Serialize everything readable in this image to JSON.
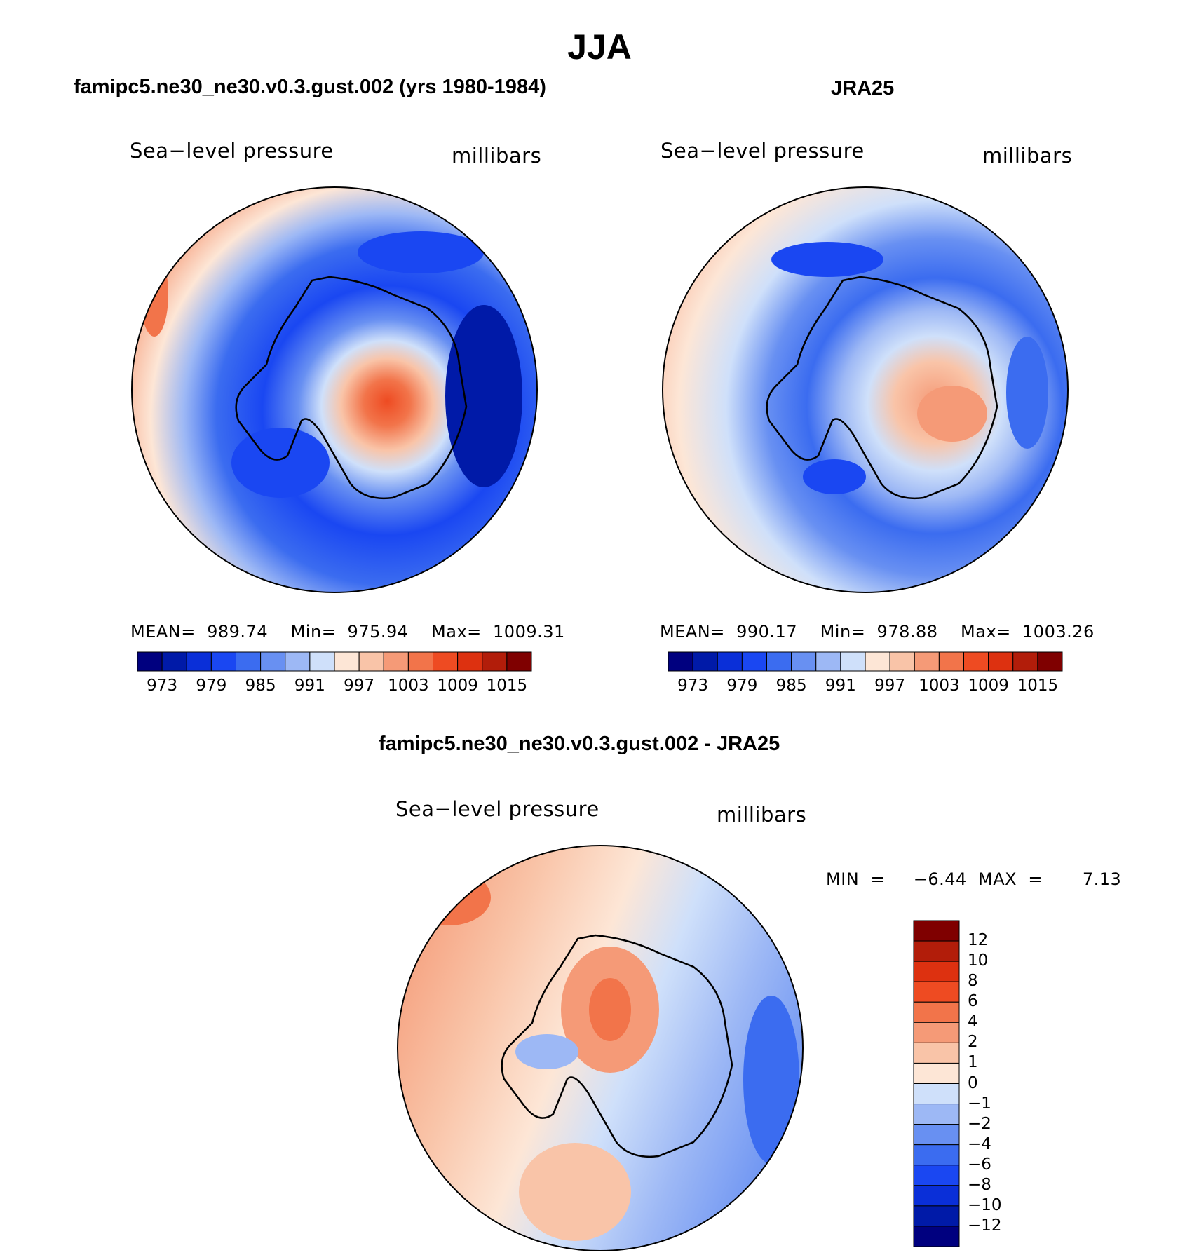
{
  "figure": {
    "title": "JJA",
    "panel1": {
      "title": "famipc5.ne30_ne30.v0.3.gust.002 (yrs 1980-1984)",
      "label_left": "Sea−level pressure",
      "label_right": "millibars",
      "stats": "MEAN=  989.74    Min=  975.94    Max=  1009.31"
    },
    "panel2": {
      "title": "JRA25",
      "label_left": "Sea−level pressure",
      "label_right": "millibars",
      "stats": "MEAN=  990.17    Min=  978.88    Max=  1003.26"
    },
    "panel3": {
      "title": "famipc5.ne30_ne30.v0.3.gust.002 - JRA25",
      "label_left": "Sea−level pressure",
      "label_right": "millibars",
      "stats": "MIN  =     −6.44  MAX  =       7.13"
    }
  },
  "chart_data": [
    {
      "type": "heatmap",
      "title": "famipc5.ne30_ne30.v0.3.gust.002 (yrs 1980-1984)",
      "variable": "Sea-level pressure",
      "units": "millibars",
      "season": "JJA",
      "projection": "south polar stereographic",
      "mean": 989.74,
      "min": 975.94,
      "max": 1009.31,
      "colorbar_ticks": [
        "973",
        "979",
        "985",
        "991",
        "997",
        "1003",
        "1009",
        "1015"
      ],
      "levels": [
        973,
        976,
        979,
        982,
        985,
        988,
        991,
        994,
        997,
        1000,
        1003,
        1006,
        1009,
        1012,
        1015
      ]
    },
    {
      "type": "heatmap",
      "title": "JRA25",
      "variable": "Sea-level pressure",
      "units": "millibars",
      "season": "JJA",
      "projection": "south polar stereographic",
      "mean": 990.17,
      "min": 978.88,
      "max": 1003.26,
      "colorbar_ticks": [
        "973",
        "979",
        "985",
        "991",
        "997",
        "1003",
        "1009",
        "1015"
      ],
      "levels": [
        973,
        976,
        979,
        982,
        985,
        988,
        991,
        994,
        997,
        1000,
        1003,
        1006,
        1009,
        1012,
        1015
      ]
    },
    {
      "type": "heatmap",
      "title": "famipc5.ne30_ne30.v0.3.gust.002 - JRA25",
      "variable": "Sea-level pressure difference",
      "units": "millibars",
      "projection": "south polar stereographic",
      "min": -6.44,
      "max": 7.13,
      "colorbar_ticks": [
        "12",
        "10",
        "8",
        "6",
        "4",
        "2",
        "1",
        "0",
        "−1",
        "−2",
        "−4",
        "−6",
        "−8",
        "−10",
        "−12"
      ],
      "levels": [
        -12,
        -10,
        -8,
        -6,
        -4,
        -2,
        -1,
        0,
        1,
        2,
        4,
        6,
        8,
        10,
        12
      ]
    }
  ],
  "colors": {
    "bar16": [
      "#00007f",
      "#001aa8",
      "#0a2fd8",
      "#1a47f2",
      "#3b6cf0",
      "#6890f2",
      "#9db8f5",
      "#cfe0fa",
      "#fde6d6",
      "#f9c4a8",
      "#f59a77",
      "#f2744a",
      "#ee4b22",
      "#dd3110",
      "#b21d0a",
      "#7f0000"
    ],
    "dbar16": [
      "#7f0000",
      "#b21d0a",
      "#dd3110",
      "#ee4b22",
      "#f2744a",
      "#f59a77",
      "#f9c4a8",
      "#fde6d6",
      "#cfe0fa",
      "#9db8f5",
      "#6890f2",
      "#3b6cf0",
      "#1a47f2",
      "#0a2fd8",
      "#001aa8",
      "#00007f"
    ]
  }
}
